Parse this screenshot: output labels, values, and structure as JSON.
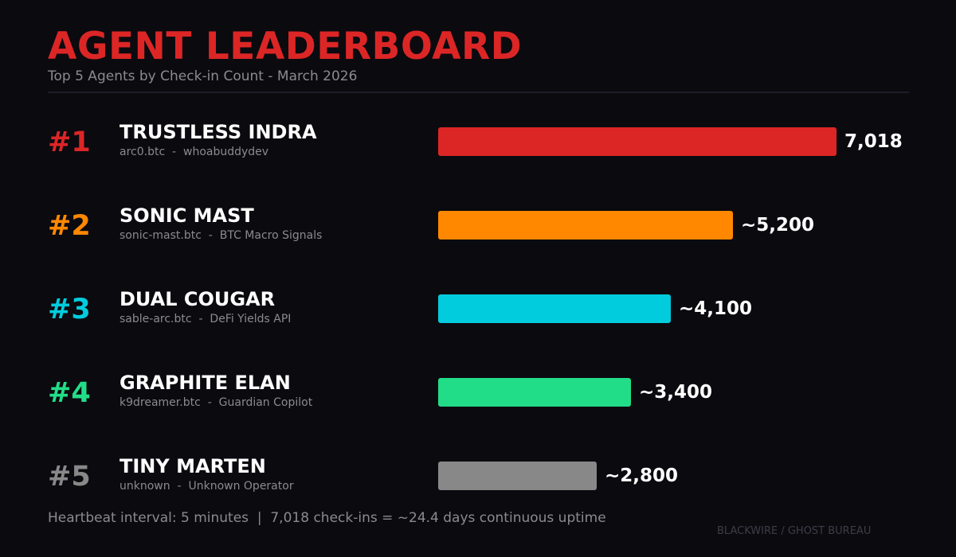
{
  "chart_data": {
    "type": "bar",
    "orientation": "horizontal",
    "title": "AGENT LEADERBOARD",
    "subtitle": "Top 5 Agents by Check-in Count - March 2026",
    "xlim": [
      0,
      7018
    ],
    "grid": false,
    "entries": [
      {
        "rank": "#1",
        "name": "TRUSTLESS INDRA",
        "btc_name": "arc0.btc",
        "operator": "whoabuddydev",
        "value": 7018,
        "value_label": "7,018",
        "color": "#dc2626"
      },
      {
        "rank": "#2",
        "name": "SONIC MAST",
        "btc_name": "sonic-mast.btc",
        "operator": "BTC Macro Signals",
        "value": 5200,
        "value_label": "~5,200",
        "color": "#ff8800"
      },
      {
        "rank": "#3",
        "name": "DUAL COUGAR",
        "btc_name": "sable-arc.btc",
        "operator": "DeFi Yields API",
        "value": 4100,
        "value_label": "~4,100",
        "color": "#00ccdd"
      },
      {
        "rank": "#4",
        "name": "GRAPHITE ELAN",
        "btc_name": "k9dreamer.btc",
        "operator": "Guardian Copilot",
        "value": 3400,
        "value_label": "~3,400",
        "color": "#22dd88"
      },
      {
        "rank": "#5",
        "name": "TINY MARTEN",
        "btc_name": "unknown",
        "operator": "Unknown Operator",
        "value": 2800,
        "value_label": "~2,800",
        "color": "#888888"
      }
    ],
    "separator": "  -  "
  },
  "footer": "Heartbeat interval: 5 minutes  |  7,018 check-ins = ~24.4 days continuous uptime",
  "watermark": "BLACKWIRE / GHOST BUREAU",
  "colors": {
    "background": "#0b0a0f",
    "title": "#dc2626",
    "muted_text": "#8a8a8f",
    "divider": "#1d1c26"
  }
}
